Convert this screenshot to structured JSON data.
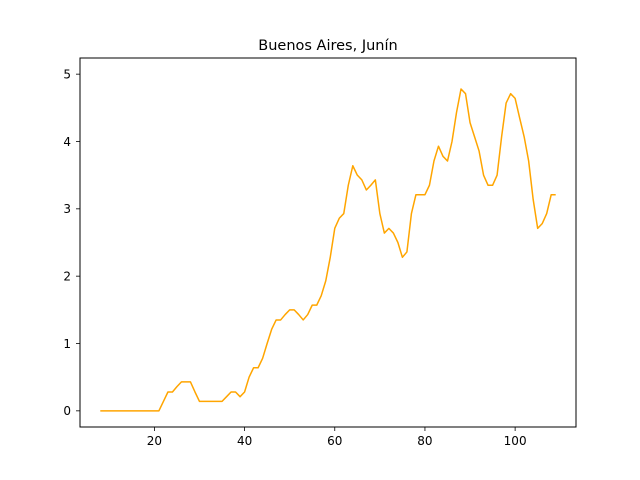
{
  "chart_data": {
    "type": "line",
    "title": "Buenos Aires, Junín",
    "xlabel": "",
    "ylabel": "",
    "xlim": [
      3.5,
      113.5
    ],
    "ylim": [
      -0.24,
      5.24
    ],
    "x_ticks": [
      20,
      40,
      60,
      80,
      100
    ],
    "y_ticks": [
      0,
      1,
      2,
      3,
      4,
      5
    ],
    "grid": false,
    "legend": "none",
    "series": [
      {
        "color": "#ffa500",
        "x": [
          8,
          9,
          10,
          11,
          12,
          13,
          14,
          15,
          16,
          17,
          18,
          19,
          20,
          21,
          22,
          23,
          24,
          25,
          26,
          27,
          28,
          29,
          30,
          31,
          32,
          33,
          34,
          35,
          36,
          37,
          38,
          39,
          40,
          41,
          42,
          43,
          44,
          45,
          46,
          47,
          48,
          49,
          50,
          51,
          52,
          53,
          54,
          55,
          56,
          57,
          58,
          59,
          60,
          61,
          62,
          63,
          64,
          65,
          66,
          67,
          68,
          69,
          70,
          71,
          72,
          73,
          74,
          75,
          76,
          77,
          78,
          79,
          80,
          81,
          82,
          83,
          84,
          85,
          86,
          87,
          88,
          89,
          90,
          91,
          92,
          93,
          94,
          95,
          96,
          97,
          98,
          99,
          100,
          101,
          102,
          103,
          104,
          105,
          106,
          107,
          108,
          109
        ],
        "y": [
          0,
          0,
          0,
          0,
          0,
          0,
          0,
          0,
          0,
          0,
          0,
          0,
          0,
          0,
          0.14,
          0.28,
          0.28,
          0.36,
          0.43,
          0.43,
          0.43,
          0.28,
          0.14,
          0.14,
          0.14,
          0.14,
          0.14,
          0.14,
          0.21,
          0.28,
          0.28,
          0.21,
          0.28,
          0.5,
          0.64,
          0.64,
          0.78,
          1.0,
          1.21,
          1.35,
          1.35,
          1.43,
          1.5,
          1.5,
          1.43,
          1.35,
          1.43,
          1.57,
          1.57,
          1.71,
          1.93,
          2.28,
          2.71,
          2.86,
          2.93,
          3.35,
          3.64,
          3.5,
          3.43,
          3.28,
          3.35,
          3.43,
          2.93,
          2.64,
          2.71,
          2.64,
          2.5,
          2.28,
          2.36,
          2.93,
          3.21,
          3.21,
          3.21,
          3.35,
          3.71,
          3.93,
          3.78,
          3.71,
          4.0,
          4.43,
          4.78,
          4.71,
          4.28,
          4.07,
          3.86,
          3.5,
          3.35,
          3.35,
          3.5,
          4.07,
          4.57,
          4.71,
          4.64,
          4.35,
          4.07,
          3.71,
          3.14,
          2.71,
          2.78,
          2.93,
          3.21,
          3.21
        ]
      }
    ]
  }
}
